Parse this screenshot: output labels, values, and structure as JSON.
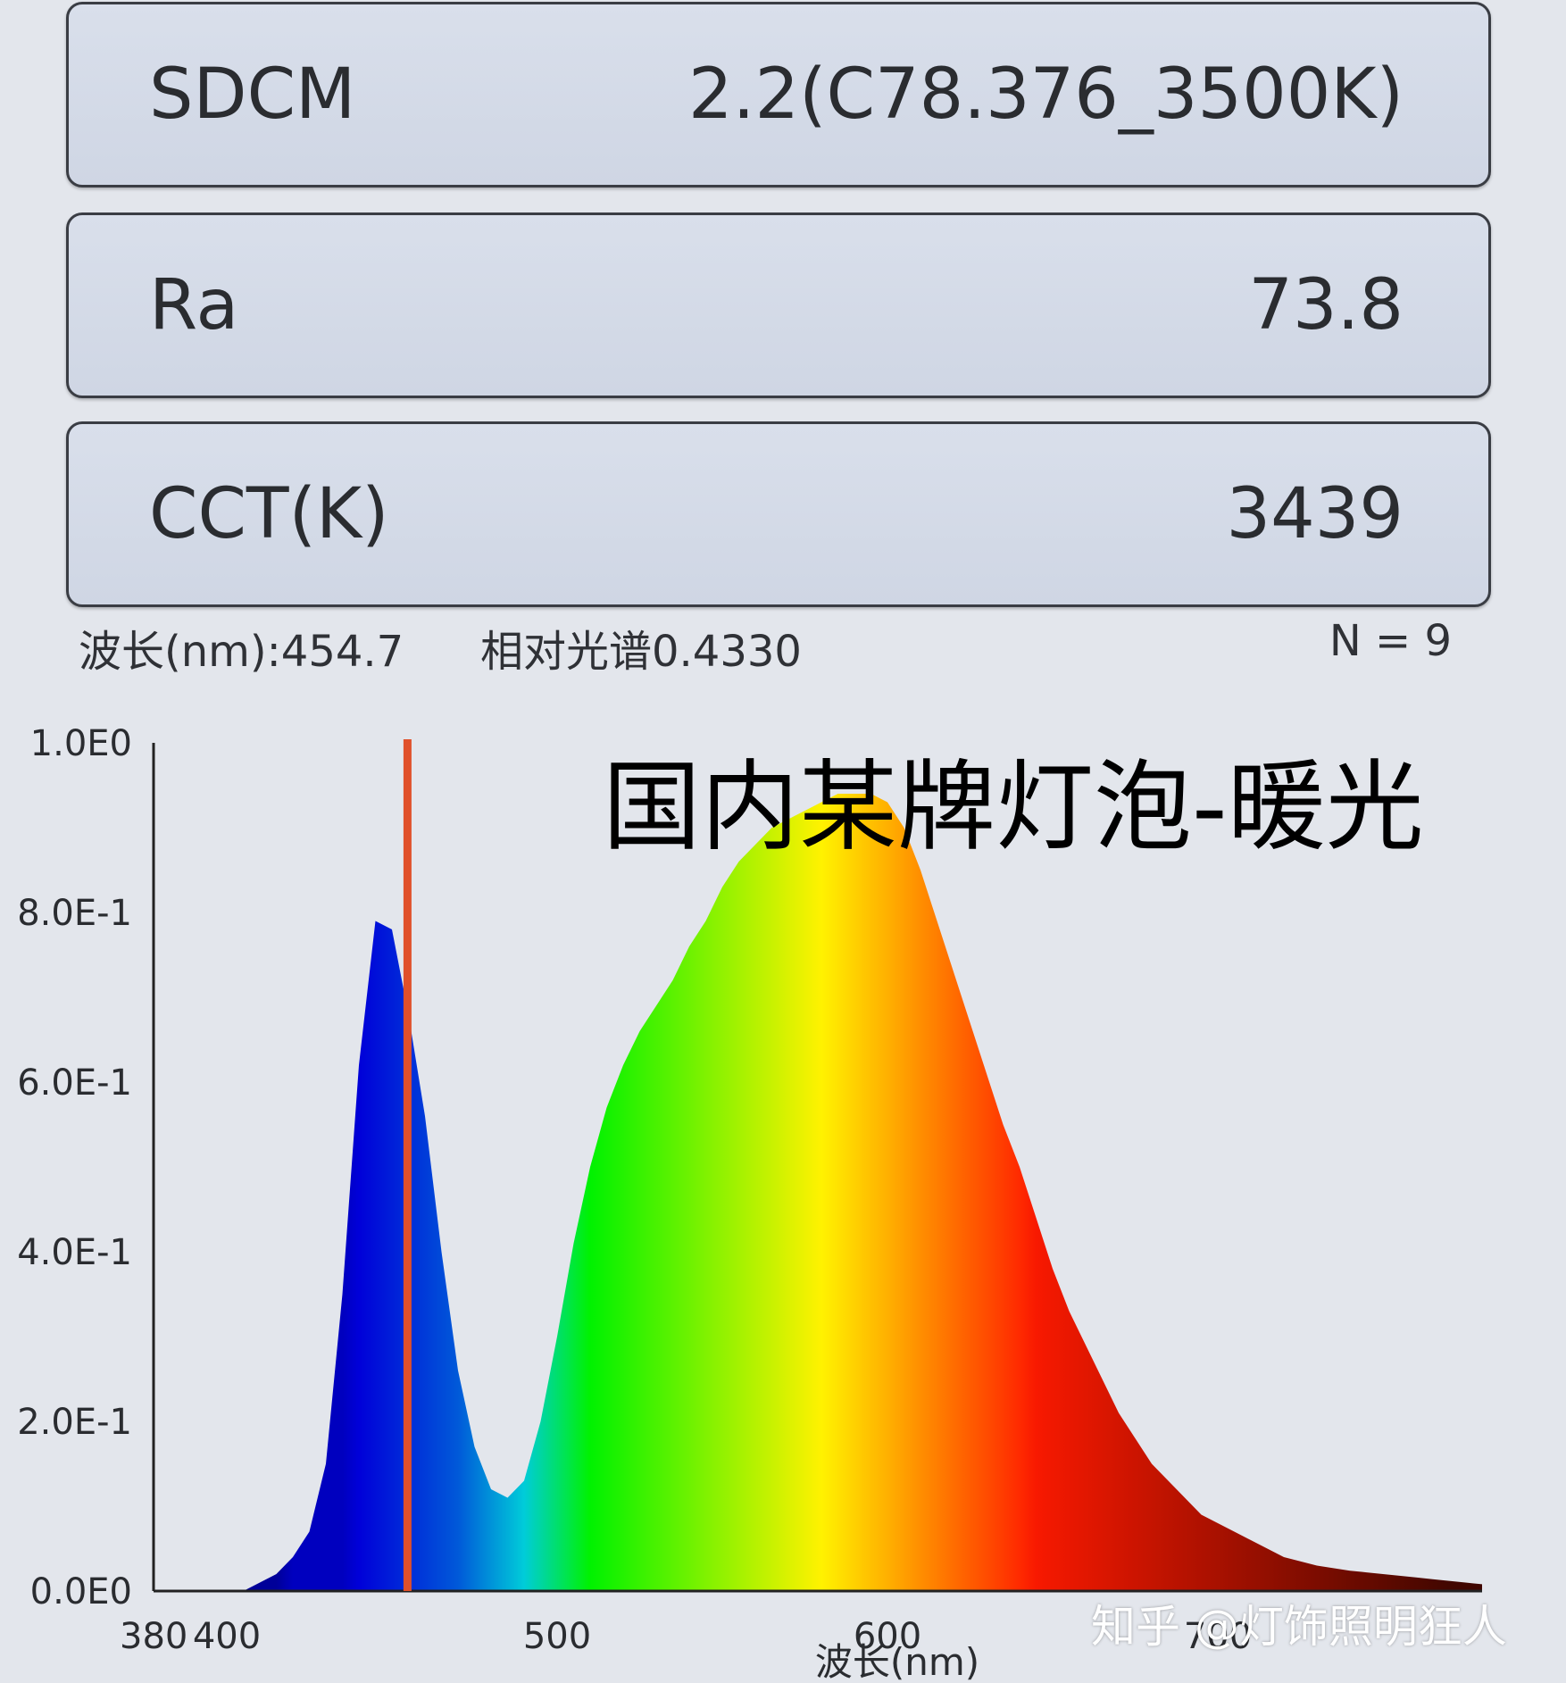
{
  "metrics": [
    {
      "label": "SDCM",
      "value": "2.2(C78.376_3500K)"
    },
    {
      "label": "Ra",
      "value": "73.8"
    },
    {
      "label": "CCT(K)",
      "value": "3439"
    }
  ],
  "cursor_info": {
    "wavelength": "波长(nm):454.7",
    "relative": "相对光谱0.4330",
    "n": "N = 9"
  },
  "watermark": "知乎 @灯饰照明狂人",
  "colors": {
    "cursor": "#e0502a",
    "axis": "#222222"
  },
  "chart_data": {
    "type": "area",
    "title": "国内某牌灯泡-暖光",
    "xlabel": "波长(nm)",
    "ylabel": "",
    "xlim": [
      380,
      780
    ],
    "ylim": [
      0,
      1.0
    ],
    "x_ticks": [
      {
        "value": 380,
        "label": "380"
      },
      {
        "value": 400,
        "label": "400"
      },
      {
        "value": 500,
        "label": "500"
      },
      {
        "value": 600,
        "label": "600"
      },
      {
        "value": 700,
        "label": "700"
      }
    ],
    "y_ticks": [
      {
        "value": 0.0,
        "label": "0.0E0"
      },
      {
        "value": 0.2,
        "label": "2.0E-1"
      },
      {
        "value": 0.4,
        "label": "4.0E-1"
      },
      {
        "value": 0.6,
        "label": "6.0E-1"
      },
      {
        "value": 0.8,
        "label": "8.0E-1"
      },
      {
        "value": 1.0,
        "label": "1.0E0"
      }
    ],
    "cursor_wavelength": 454.7,
    "grid": false,
    "fill": "spectrum-colored",
    "x": [
      405,
      410,
      415,
      420,
      425,
      430,
      435,
      440,
      445,
      450,
      455,
      460,
      465,
      470,
      475,
      480,
      485,
      490,
      495,
      500,
      505,
      510,
      515,
      520,
      525,
      530,
      535,
      540,
      545,
      550,
      555,
      560,
      565,
      570,
      575,
      580,
      585,
      590,
      595,
      600,
      605,
      610,
      615,
      620,
      625,
      630,
      635,
      640,
      645,
      650,
      655,
      660,
      665,
      670,
      675,
      680,
      685,
      690,
      695,
      700,
      705,
      710,
      715,
      720,
      725,
      730,
      735,
      740,
      745,
      750,
      755,
      760,
      765,
      770,
      775,
      780
    ],
    "values": [
      0.0,
      0.01,
      0.02,
      0.04,
      0.07,
      0.15,
      0.35,
      0.62,
      0.79,
      0.78,
      0.68,
      0.56,
      0.4,
      0.26,
      0.17,
      0.12,
      0.11,
      0.13,
      0.2,
      0.3,
      0.41,
      0.5,
      0.57,
      0.62,
      0.66,
      0.69,
      0.72,
      0.76,
      0.79,
      0.83,
      0.86,
      0.88,
      0.9,
      0.91,
      0.92,
      0.93,
      0.94,
      0.94,
      0.94,
      0.93,
      0.9,
      0.85,
      0.79,
      0.73,
      0.67,
      0.61,
      0.55,
      0.5,
      0.44,
      0.38,
      0.33,
      0.29,
      0.25,
      0.21,
      0.18,
      0.15,
      0.13,
      0.11,
      0.09,
      0.08,
      0.07,
      0.06,
      0.05,
      0.04,
      0.035,
      0.03,
      0.027,
      0.024,
      0.022,
      0.02,
      0.018,
      0.016,
      0.014,
      0.012,
      0.01,
      0.008
    ]
  }
}
